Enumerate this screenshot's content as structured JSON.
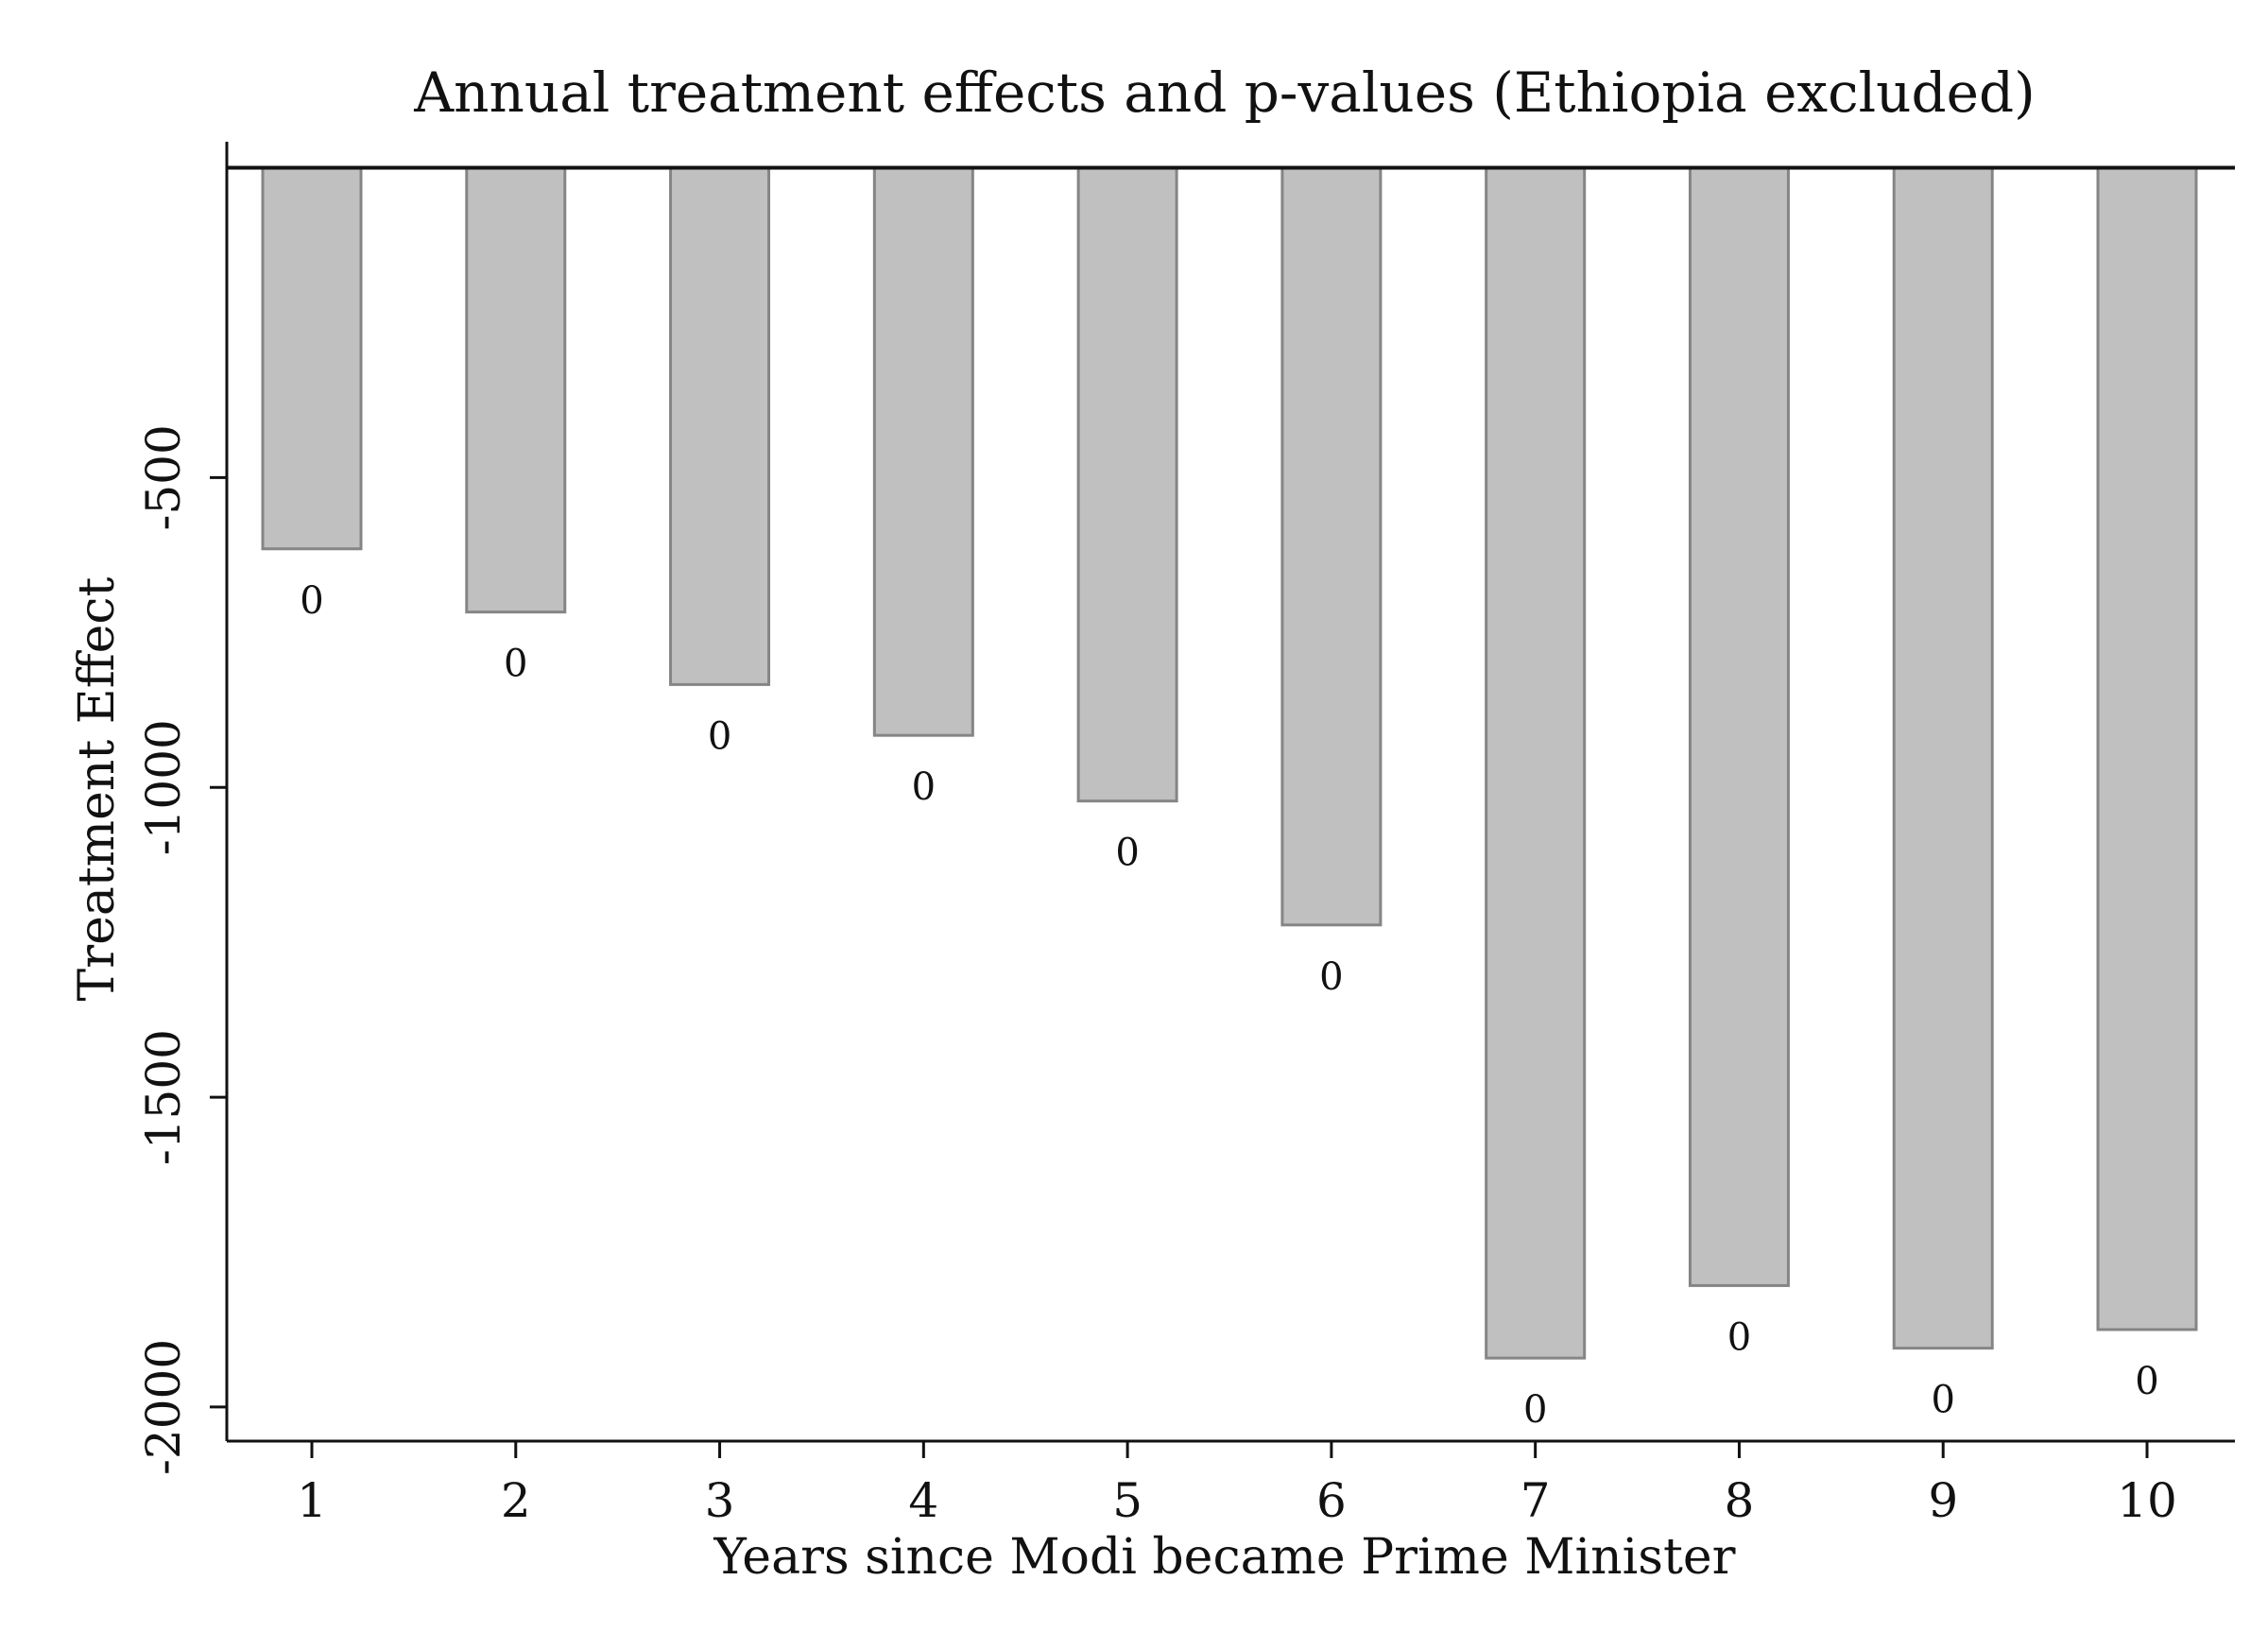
{
  "chart_data": {
    "type": "bar",
    "title": "Annual treatment effects and p-values (Ethiopia excluded)",
    "xlabel": "Years since Modi became Prime Minister",
    "ylabel": "Treatment Effect",
    "categories": [
      "1",
      "2",
      "3",
      "4",
      "5",
      "6",
      "7",
      "8",
      "9",
      "10"
    ],
    "values": [
      -615,
      -717,
      -834,
      -916,
      -1022,
      -1222,
      -1921,
      -1804,
      -1905,
      -1875
    ],
    "data_labels": [
      "0",
      "0",
      "0",
      "0",
      "0",
      "0",
      "0",
      "0",
      "0",
      "0"
    ],
    "y_ticks": [
      -500,
      -1000,
      -1500,
      -2000
    ],
    "y_tick_labels": [
      "-500",
      "-1000",
      "-1500",
      "-2000"
    ],
    "ylim": [
      -2055,
      42
    ],
    "grid": false,
    "legend": "none",
    "colors": {
      "bar_fill": "#c0c0c0",
      "bar_stroke": "#858585",
      "axis": "#111111"
    }
  }
}
